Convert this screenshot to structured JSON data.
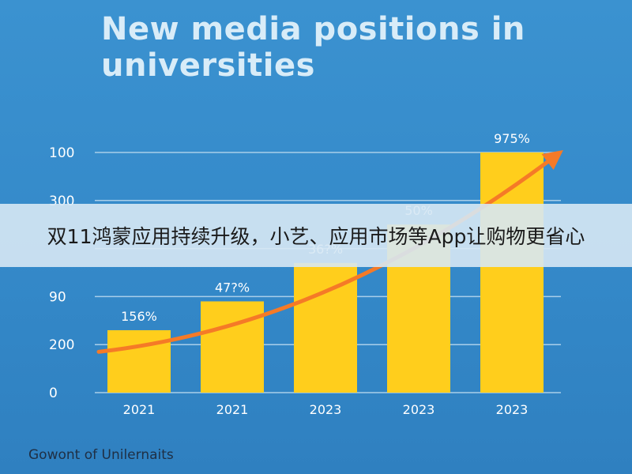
{
  "chart_data": {
    "type": "bar",
    "title": "New media positions in universities",
    "categories": [
      "2021",
      "2021",
      "2023",
      "2023",
      "2023"
    ],
    "values": [
      13,
      19,
      27,
      35,
      50
    ],
    "data_labels": [
      "156%",
      "47?%",
      "36?%",
      "50%",
      "975%"
    ],
    "ytick_labels": [
      "0",
      "200",
      "90",
      "",
      "300",
      "100"
    ],
    "ylim": [
      0,
      50
    ],
    "trend_line": true,
    "grid": true,
    "footnote": "Gowont of Unilernaits",
    "colors": {
      "bar": "#ffce1c",
      "trend": "#f57a27",
      "background": "#3489c9",
      "grid": "#a9cfea"
    }
  },
  "overlay": {
    "banner_text": "双11鸿蒙应用持续升级，小艺、应用市场等App让购物更省心"
  }
}
